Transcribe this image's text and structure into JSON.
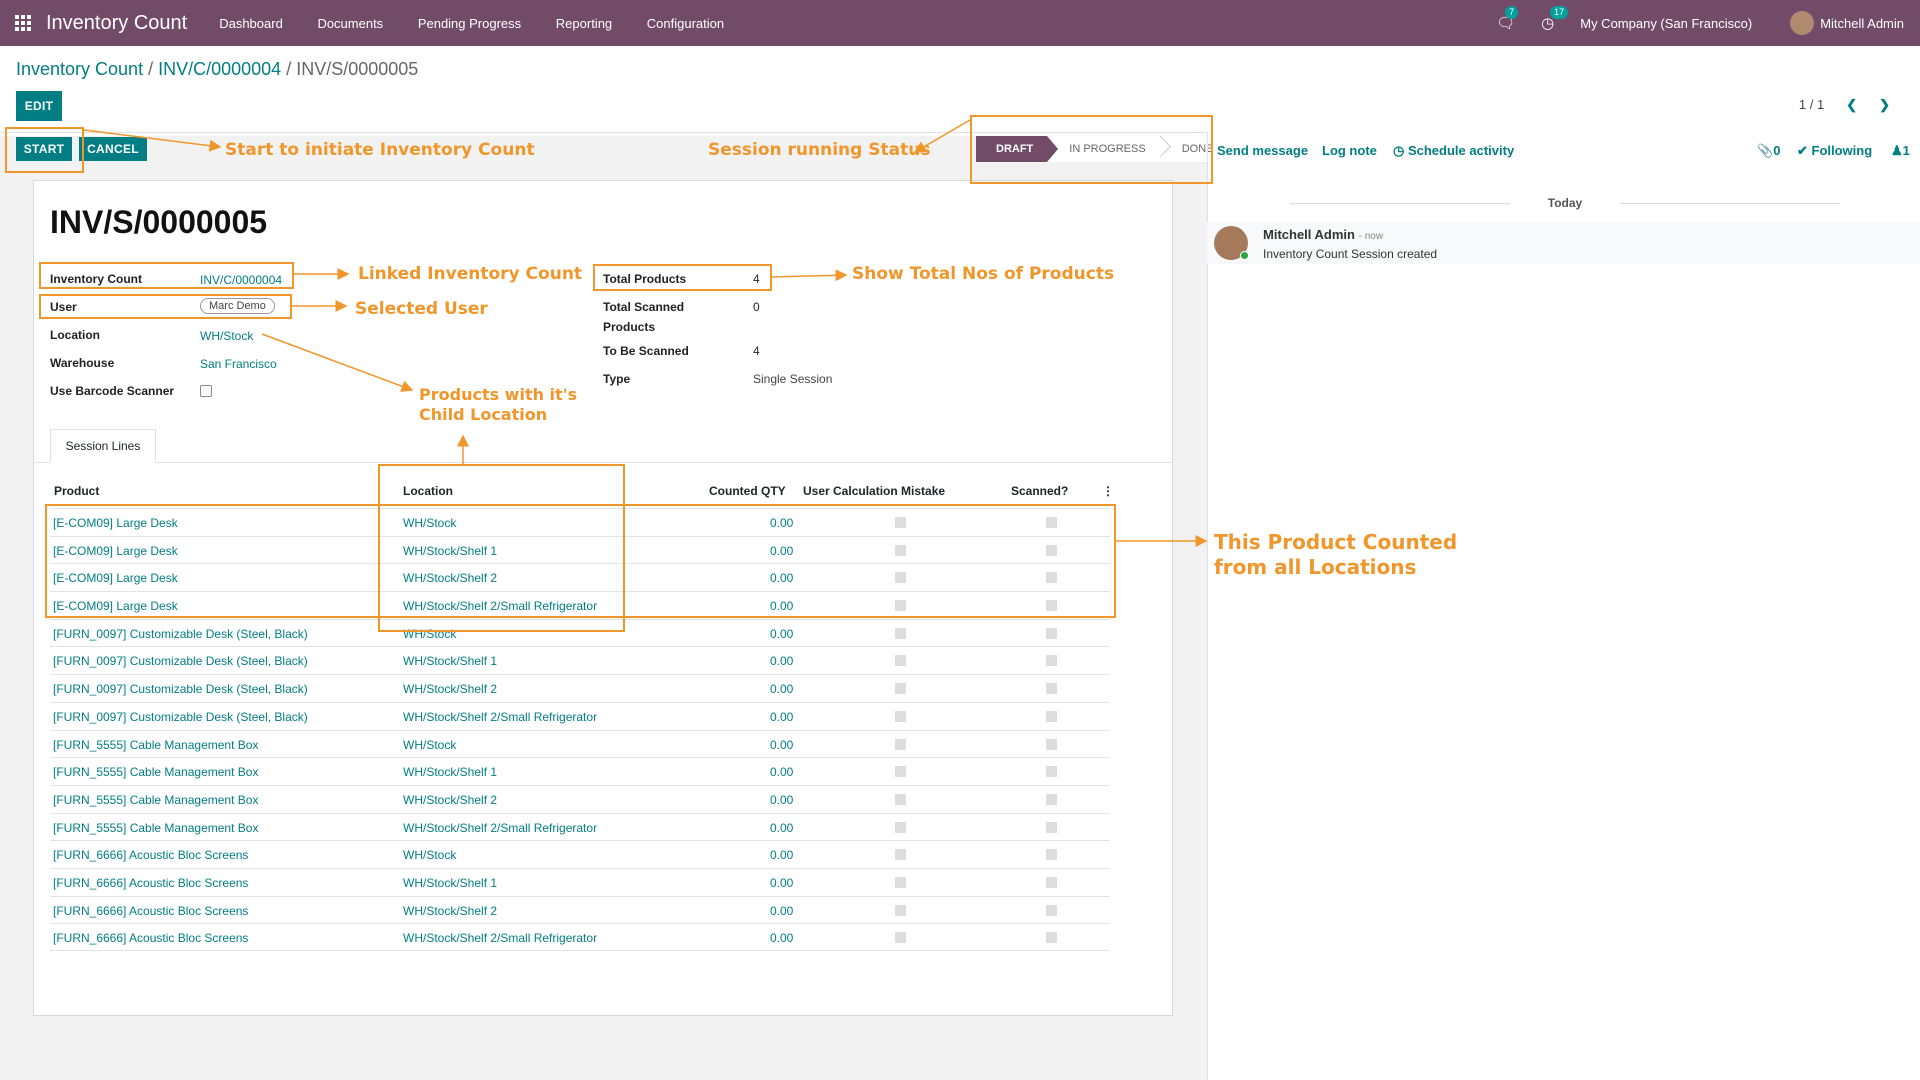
{
  "navbar": {
    "app_name": "Inventory Count",
    "menu": [
      "Dashboard",
      "Documents",
      "Pending Progress",
      "Reporting",
      "Configuration"
    ],
    "messages_badge": "7",
    "activities_badge": "17",
    "company": "My Company (San Francisco)",
    "user": "Mitchell Admin"
  },
  "breadcrumb": {
    "root": "Inventory Count",
    "sep": " / ",
    "parent": "INV/C/0000004",
    "current": "INV/S/0000005"
  },
  "buttons": {
    "edit": "EDIT",
    "start": "START",
    "cancel": "CANCEL"
  },
  "pager": {
    "value": "1 / 1"
  },
  "statusbar": {
    "stages": [
      "DRAFT",
      "IN PROGRESS",
      "DONE"
    ],
    "active": "DRAFT"
  },
  "chatter": {
    "send_message": "Send message",
    "log_note": "Log note",
    "schedule_activity": "Schedule activity",
    "attachments": "0",
    "following": "Following",
    "followers": "1",
    "date_sep": "Today",
    "message": {
      "author": "Mitchell Admin",
      "time": "- now",
      "body": "Inventory Count Session created"
    }
  },
  "form": {
    "title": "INV/S/0000005",
    "fields_left": {
      "inventory_count": {
        "label": "Inventory Count",
        "value": "INV/C/0000004"
      },
      "user": {
        "label": "User",
        "value": "Marc Demo"
      },
      "location": {
        "label": "Location",
        "value": "WH/Stock"
      },
      "warehouse": {
        "label": "Warehouse",
        "value": "San Francisco"
      },
      "barcode": {
        "label": "Use Barcode Scanner",
        "checked": false
      }
    },
    "fields_right": {
      "total_products": {
        "label": "Total Products",
        "value": "4"
      },
      "total_scanned_line1": "Total Scanned",
      "total_scanned_line2": "Products",
      "total_scanned_value": "0",
      "to_be_scanned": {
        "label": "To Be Scanned",
        "value": "4"
      },
      "type": {
        "label": "Type",
        "value": "Single Session"
      }
    },
    "tab": "Session Lines",
    "columns": {
      "product": "Product",
      "location": "Location",
      "counted_qty": "Counted QTY",
      "mistake": "User Calculation Mistake",
      "scanned": "Scanned?"
    },
    "rows": [
      {
        "product": "[E-COM09] Large Desk",
        "location": "WH/Stock",
        "qty": "0.00"
      },
      {
        "product": "[E-COM09] Large Desk",
        "location": "WH/Stock/Shelf 1",
        "qty": "0.00"
      },
      {
        "product": "[E-COM09] Large Desk",
        "location": "WH/Stock/Shelf 2",
        "qty": "0.00"
      },
      {
        "product": "[E-COM09] Large Desk",
        "location": "WH/Stock/Shelf 2/Small Refrigerator",
        "qty": "0.00"
      },
      {
        "product": "[FURN_0097] Customizable Desk (Steel, Black)",
        "location": "WH/Stock",
        "qty": "0.00"
      },
      {
        "product": "[FURN_0097] Customizable Desk (Steel, Black)",
        "location": "WH/Stock/Shelf 1",
        "qty": "0.00"
      },
      {
        "product": "[FURN_0097] Customizable Desk (Steel, Black)",
        "location": "WH/Stock/Shelf 2",
        "qty": "0.00"
      },
      {
        "product": "[FURN_0097] Customizable Desk (Steel, Black)",
        "location": "WH/Stock/Shelf 2/Small Refrigerator",
        "qty": "0.00"
      },
      {
        "product": "[FURN_5555] Cable Management Box",
        "location": "WH/Stock",
        "qty": "0.00"
      },
      {
        "product": "[FURN_5555] Cable Management Box",
        "location": "WH/Stock/Shelf 1",
        "qty": "0.00"
      },
      {
        "product": "[FURN_5555] Cable Management Box",
        "location": "WH/Stock/Shelf 2",
        "qty": "0.00"
      },
      {
        "product": "[FURN_5555] Cable Management Box",
        "location": "WH/Stock/Shelf 2/Small Refrigerator",
        "qty": "0.00"
      },
      {
        "product": "[FURN_6666] Acoustic Bloc Screens",
        "location": "WH/Stock",
        "qty": "0.00"
      },
      {
        "product": "[FURN_6666] Acoustic Bloc Screens",
        "location": "WH/Stock/Shelf 1",
        "qty": "0.00"
      },
      {
        "product": "[FURN_6666] Acoustic Bloc Screens",
        "location": "WH/Stock/Shelf 2",
        "qty": "0.00"
      },
      {
        "product": "[FURN_6666] Acoustic Bloc Screens",
        "location": "WH/Stock/Shelf 2/Small Refrigerator",
        "qty": "0.00"
      }
    ]
  },
  "annotations": {
    "start": "Start to initiate Inventory Count",
    "status": "Session running Status",
    "linked": "Linked Inventory Count",
    "user": "Selected User",
    "total": "Show Total Nos of Products",
    "child_line1": "Products with it's",
    "child_line2": "Child Location",
    "counted_line1": "This Product Counted",
    "counted_line2": "from all Locations"
  },
  "colors": {
    "navbar": "#714B67",
    "primary": "#017e84",
    "annotation": "#f0962a"
  }
}
